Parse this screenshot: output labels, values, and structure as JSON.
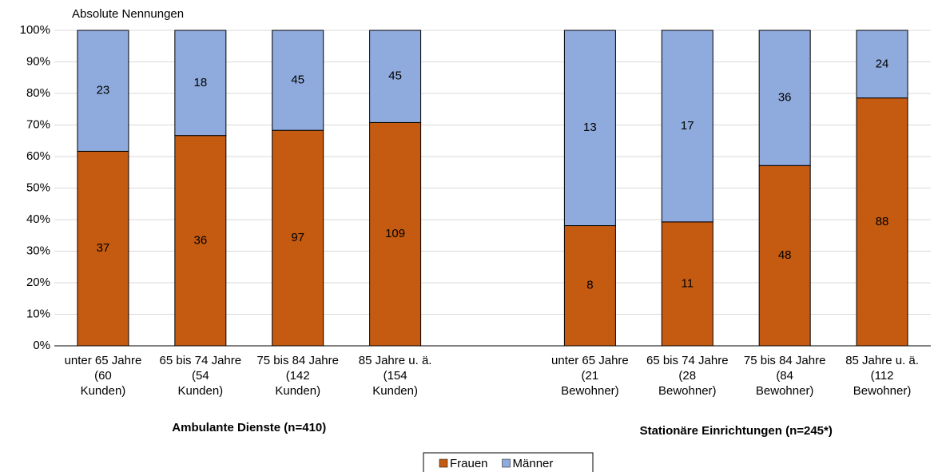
{
  "chart_data": {
    "type": "bar",
    "stacking": "percent",
    "y_label": "Absolute Nennungen",
    "ylim": [
      0,
      100
    ],
    "yticks": [
      {
        "value": 0,
        "label": "0%"
      },
      {
        "value": 10,
        "label": "10%"
      },
      {
        "value": 20,
        "label": "20%"
      },
      {
        "value": 30,
        "label": "30%"
      },
      {
        "value": 40,
        "label": "40%"
      },
      {
        "value": 50,
        "label": "50%"
      },
      {
        "value": 60,
        "label": "60%"
      },
      {
        "value": 70,
        "label": "70%"
      },
      {
        "value": 80,
        "label": "80%"
      },
      {
        "value": 90,
        "label": "90%"
      },
      {
        "value": 100,
        "label": "100%"
      }
    ],
    "grid": true,
    "legend": "bottom",
    "series": [
      {
        "name": "Frauen",
        "color": "#c55a11"
      },
      {
        "name": "Männer",
        "color": "#8faadc"
      }
    ],
    "groups": [
      {
        "title": "Ambulante Dienste (n=410)",
        "categories": [
          [
            "unter 65 Jahre",
            "(60",
            "Kunden)"
          ],
          [
            "65 bis 74 Jahre",
            "(54",
            "Kunden)"
          ],
          [
            "75 bis 84 Jahre",
            "(142",
            "Kunden)"
          ],
          [
            "85 Jahre u. ä.",
            "(154",
            "Kunden)"
          ]
        ],
        "series": [
          {
            "values": [
              37,
              36,
              97,
              109
            ]
          },
          {
            "values": [
              23,
              18,
              45,
              45
            ]
          }
        ]
      },
      {
        "title": "Stationäre Einrichtungen (n=245*)",
        "categories": [
          [
            "unter 65 Jahre",
            "(21",
            "Bewohner)"
          ],
          [
            "65 bis 74 Jahre",
            "(28",
            "Bewohner)"
          ],
          [
            "75 bis 84 Jahre",
            "(84",
            "Bewohner)"
          ],
          [
            "85 Jahre u. ä.",
            "(112",
            "Bewohner)"
          ]
        ],
        "series": [
          {
            "values": [
              8,
              11,
              48,
              88
            ]
          },
          {
            "values": [
              13,
              17,
              36,
              24
            ]
          }
        ]
      }
    ]
  }
}
